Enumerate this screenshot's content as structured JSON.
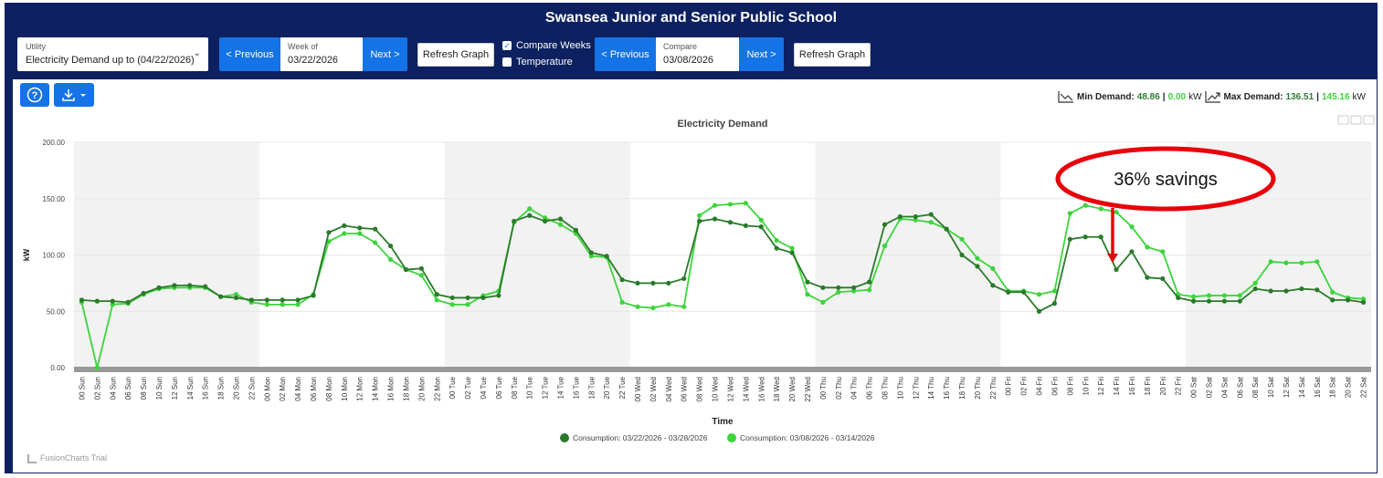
{
  "page": {
    "title": "Swansea Junior and Senior Public School"
  },
  "toolbar": {
    "utility_label": "Utility",
    "utility_value": "Electricity Demand up to (04/22/2026)",
    "prev_label": "< Previous",
    "next_label": "Next >",
    "week_label": "Week of",
    "week_value": "03/22/2026",
    "refresh_label": "Refresh Graph",
    "compare_weeks_label": "Compare Weeks",
    "temperature_label": "Temperature",
    "compare_label": "Compare",
    "compare_value": "03/08/2026",
    "compare_weeks_checked": true,
    "temperature_checked": false
  },
  "demand": {
    "min_label": "Min Demand:",
    "min_current": "48.86",
    "min_compare": "0.00",
    "max_label": "Max Demand:",
    "max_current": "136.51",
    "max_compare": "145.16",
    "unit": "kW",
    "sep": "|"
  },
  "annotation": {
    "text": "36% savings",
    "color": "#e8000b"
  },
  "watermark": "FusionCharts Trial",
  "chart_data": {
    "type": "line",
    "title": "Electricity Demand",
    "xlabel": "Time",
    "ylabel": "kW",
    "ylim": [
      0,
      200
    ],
    "yticks": [
      "0.00",
      "50.00",
      "100.00",
      "150.00",
      "200.00"
    ],
    "categories": [
      "00 Sun",
      "02 Sun",
      "04 Sun",
      "06 Sun",
      "08 Sun",
      "10 Sun",
      "12 Sun",
      "14 Sun",
      "16 Sun",
      "18 Sun",
      "20 Sun",
      "22 Sun",
      "00 Mon",
      "02 Mon",
      "04 Mon",
      "06 Mon",
      "08 Mon",
      "10 Mon",
      "12 Mon",
      "14 Mon",
      "16 Mon",
      "18 Mon",
      "20 Mon",
      "22 Mon",
      "00 Tue",
      "02 Tue",
      "04 Tue",
      "06 Tue",
      "08 Tue",
      "10 Tue",
      "12 Tue",
      "14 Tue",
      "16 Tue",
      "18 Tue",
      "20 Tue",
      "22 Tue",
      "00 Wed",
      "02 Wed",
      "04 Wed",
      "06 Wed",
      "08 Wed",
      "10 Wed",
      "12 Wed",
      "14 Wed",
      "16 Wed",
      "18 Wed",
      "20 Wed",
      "22 Wed",
      "00 Thu",
      "02 Thu",
      "04 Thu",
      "06 Thu",
      "08 Thu",
      "10 Thu",
      "12 Thu",
      "14 Thu",
      "16 Thu",
      "18 Thu",
      "20 Thu",
      "22 Thu",
      "00 Fri",
      "02 Fri",
      "04 Fri",
      "06 Fri",
      "08 Fri",
      "10 Fri",
      "12 Fri",
      "14 Fri",
      "16 Fri",
      "18 Fri",
      "20 Fri",
      "22 Fri",
      "00 Sat",
      "02 Sat",
      "04 Sat",
      "06 Sat",
      "08 Sat",
      "10 Sat",
      "12 Sat",
      "14 Sat",
      "16 Sat",
      "18 Sat",
      "20 Sat",
      "22 Sat"
    ],
    "series": [
      {
        "name": "Consumption: 03/22/2026 - 03/28/2026",
        "color": "#2a7a2a",
        "values": [
          60,
          59,
          59,
          58,
          66,
          71,
          73,
          73,
          72,
          63,
          62,
          60,
          60,
          60,
          60,
          64,
          120,
          126,
          124,
          123,
          108,
          87,
          88,
          65,
          62,
          62,
          62,
          64,
          130,
          135,
          130,
          132,
          122,
          102,
          99,
          78,
          75,
          75,
          75,
          79,
          130,
          132,
          129,
          126,
          125,
          106,
          102,
          76,
          71,
          71,
          71,
          76,
          127,
          134,
          134,
          136,
          123,
          100,
          90,
          73,
          67,
          67,
          50,
          57,
          114,
          116,
          116,
          87,
          103,
          80,
          79,
          62,
          59,
          59,
          59,
          59,
          70,
          68,
          68,
          70,
          69,
          60,
          60,
          58
        ]
      },
      {
        "name": "Consumption: 03/08/2026 - 03/14/2026",
        "color": "#3cd43c",
        "values": [
          58,
          0,
          56,
          57,
          65,
          70,
          71,
          71,
          71,
          63,
          65,
          58,
          56,
          56,
          56,
          65,
          112,
          119,
          119,
          111,
          96,
          87,
          82,
          60,
          56,
          56,
          64,
          68,
          129,
          141,
          133,
          127,
          119,
          99,
          98,
          58,
          54,
          53,
          56,
          54,
          135,
          144,
          145,
          146,
          131,
          113,
          106,
          65,
          58,
          67,
          68,
          69,
          108,
          132,
          131,
          129,
          123,
          114,
          97,
          88,
          68,
          68,
          65,
          68,
          137,
          144,
          141,
          138,
          125,
          107,
          103,
          65,
          63,
          64,
          64,
          64,
          75,
          94,
          93,
          93,
          94,
          67,
          62,
          61
        ]
      }
    ]
  }
}
